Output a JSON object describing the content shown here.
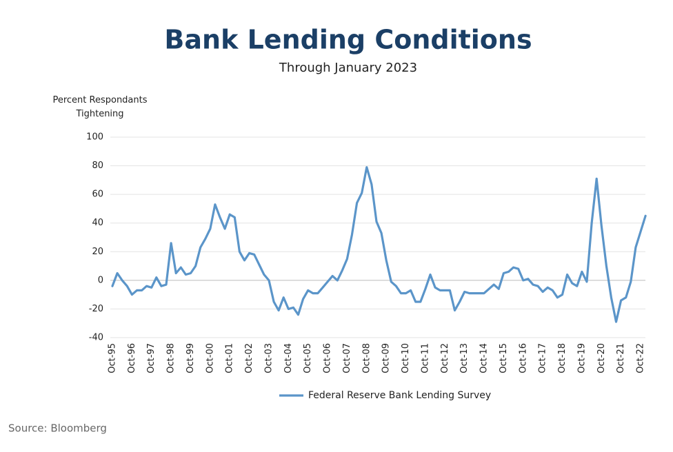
{
  "chart_data": {
    "type": "line",
    "title": "Bank Lending Conditions",
    "subtitle": "Through January 2023",
    "y_label": "Percent Respondants Tightening",
    "source": "Source: Bloomberg",
    "categories": [
      "Oct-95",
      null,
      null,
      null,
      "Oct-96",
      null,
      null,
      null,
      "Oct-97",
      null,
      null,
      null,
      "Oct-98",
      null,
      null,
      null,
      "Oct-99",
      null,
      null,
      null,
      "Oct-00",
      null,
      null,
      null,
      "Oct-01",
      null,
      null,
      null,
      "Oct-02",
      null,
      null,
      null,
      "Oct-03",
      null,
      null,
      null,
      "Oct-04",
      null,
      null,
      null,
      "Oct-05",
      null,
      null,
      null,
      "Oct-06",
      null,
      null,
      null,
      "Oct-07",
      null,
      null,
      null,
      "Oct-08",
      null,
      null,
      null,
      "Oct-09",
      null,
      null,
      null,
      "Oct-10",
      null,
      null,
      null,
      "Oct-11",
      null,
      null,
      null,
      "Oct-12",
      null,
      null,
      null,
      "Oct-13",
      null,
      null,
      null,
      "Oct-14",
      null,
      null,
      null,
      "Oct-15",
      null,
      null,
      null,
      "Oct-16",
      null,
      null,
      null,
      "Oct-17",
      null,
      null,
      null,
      "Oct-18",
      null,
      null,
      null,
      "Oct-19",
      null,
      null,
      null,
      "Oct-20",
      null,
      null,
      null,
      "Oct-21",
      null,
      null,
      null,
      "Oct-22",
      null
    ],
    "series": [
      {
        "name": "Federal Reserve Bank Lending Survey",
        "color": "#5b95c9",
        "values": [
          -4,
          5,
          0,
          -4,
          -10,
          -7,
          -7,
          -4,
          -5,
          2,
          -4,
          -3,
          26,
          5,
          9,
          4,
          5,
          10,
          23,
          29,
          36,
          53,
          44,
          36,
          46,
          44,
          20,
          14,
          19,
          18,
          11,
          4,
          0,
          -15,
          -21,
          -12,
          -20,
          -19,
          -24,
          -13,
          -7,
          -9,
          -9,
          -5,
          -1,
          3,
          0,
          7,
          15,
          32,
          54,
          61,
          79,
          67,
          41,
          33,
          14,
          -1,
          -4,
          -9,
          -9,
          -7,
          -15,
          -15,
          -6,
          4,
          -5,
          -7,
          -7,
          -7,
          -21,
          -15,
          -8,
          -9,
          -9,
          -9,
          -9,
          -6,
          -3,
          -6,
          5,
          6,
          9,
          8,
          0,
          1,
          -3,
          -4,
          -8,
          -5,
          -7,
          -12,
          -10,
          4,
          -2,
          -4,
          6,
          -1,
          40,
          71,
          38,
          10,
          -12,
          -29,
          -14,
          -12,
          -1,
          23,
          34,
          45
        ]
      }
    ],
    "ylim": [
      -40,
      100
    ],
    "yticks": [
      -40,
      -20,
      0,
      20,
      40,
      60,
      80,
      100
    ],
    "grid": true,
    "legend": "bottom"
  }
}
